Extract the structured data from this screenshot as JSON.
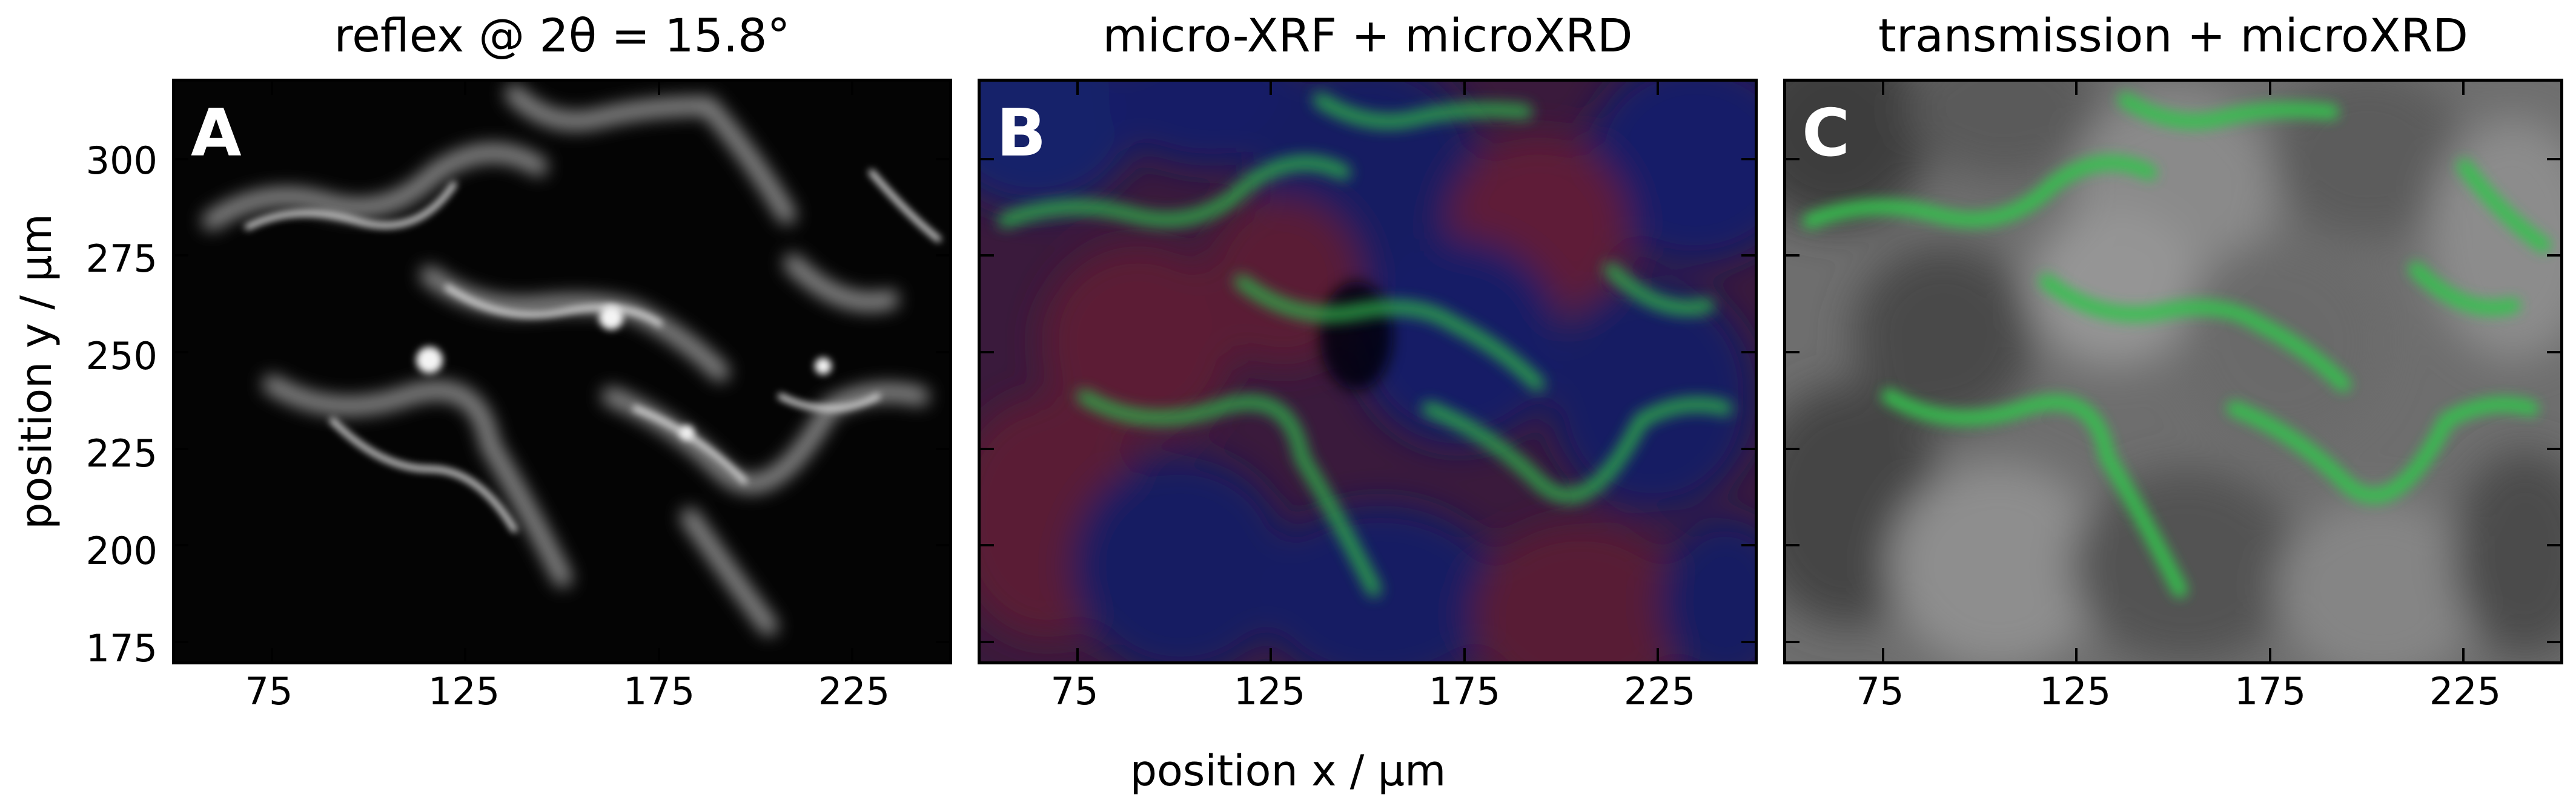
{
  "figure": {
    "panels": [
      {
        "letter": "A",
        "title": "reflex @ 2θ = 15.8°",
        "style": "grayscale"
      },
      {
        "letter": "B",
        "title": "micro-XRF + microXRD",
        "style": "rgb-overlay"
      },
      {
        "letter": "C",
        "title": "transmission + microXRD",
        "style": "gray-green-overlay"
      }
    ],
    "x_axis": {
      "label": "position x / µm",
      "range": [
        50,
        250
      ],
      "ticks": [
        "75",
        "125",
        "175",
        "225"
      ],
      "tick_values": [
        75,
        125,
        175,
        225
      ]
    },
    "y_axis": {
      "label": "position y / µm",
      "range": [
        170,
        320
      ],
      "ticks": [
        "175",
        "200",
        "225",
        "250",
        "275",
        "300"
      ],
      "tick_values": [
        175,
        200,
        225,
        250,
        275,
        300
      ]
    },
    "colors": {
      "background_dark": "#050505",
      "xrd_green": "#32c24a",
      "xrf_red": "#5a1830",
      "xrf_blue": "#101a5a",
      "transmission_gray": "#7a7a7a"
    }
  }
}
